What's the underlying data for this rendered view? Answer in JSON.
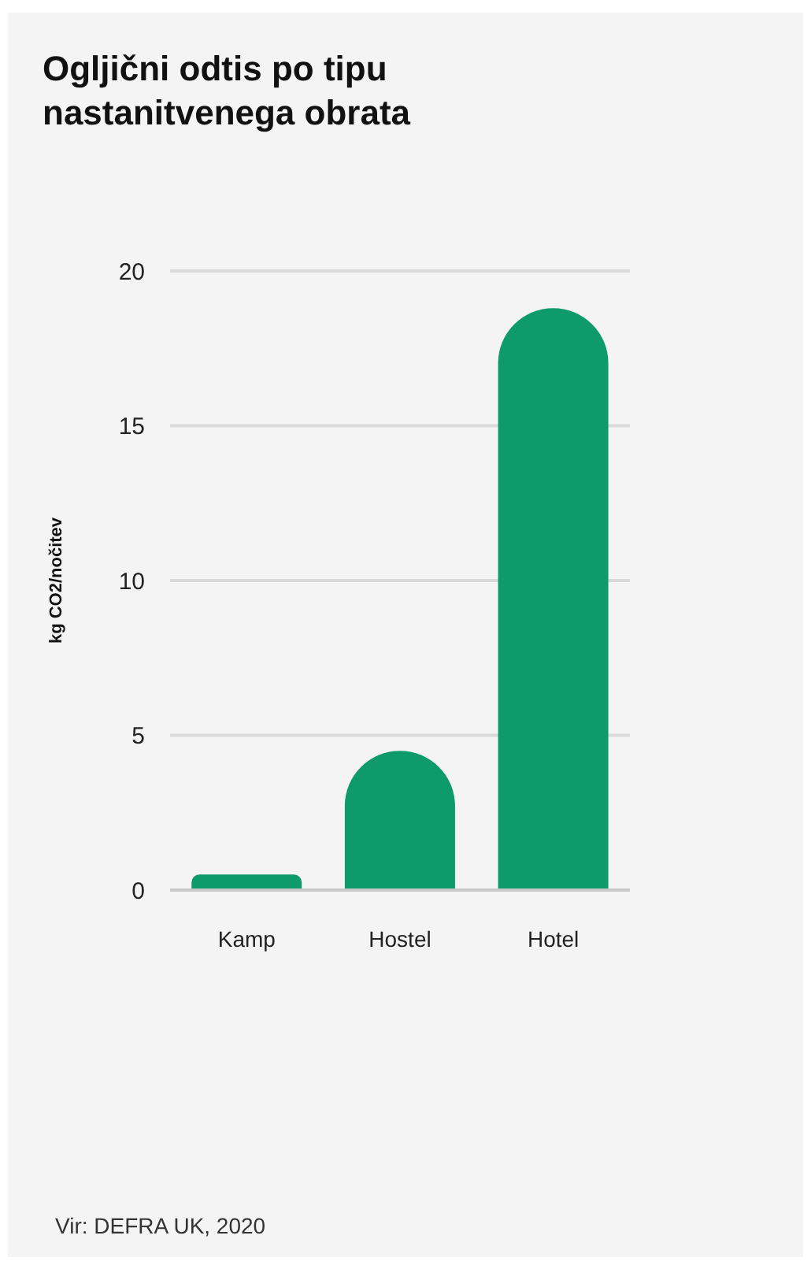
{
  "chart_data": {
    "type": "bar",
    "title": "Ogljični odtis po tipu nastanitvenega obrata",
    "ylabel": "kg CO2/nočitev",
    "categories": [
      "Kamp",
      "Hostel",
      "Hotel"
    ],
    "values": [
      0.5,
      4.5,
      18.8
    ],
    "color": "#0e9a6a",
    "ylim": [
      0,
      20
    ],
    "yticks": [
      0,
      5,
      10,
      15,
      20
    ],
    "grid": "y",
    "legend": false,
    "annotations": [
      "Vir: DEFRA UK, 2020"
    ]
  }
}
